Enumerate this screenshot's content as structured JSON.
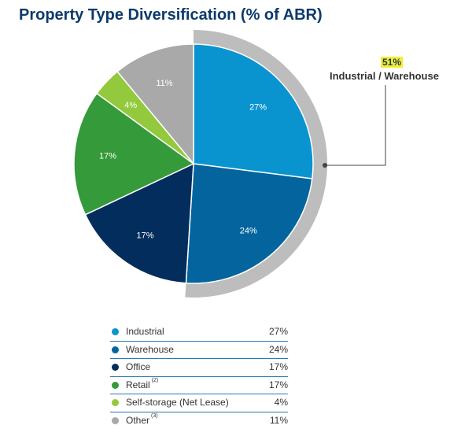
{
  "title": "Property Type Diversification (% of ABR)",
  "callout": {
    "value": "51%",
    "label": "Industrial / Warehouse"
  },
  "chart_data": {
    "type": "pie",
    "title": "Property Type Diversification (% of ABR)",
    "slices": [
      {
        "name": "Industrial",
        "value": 27,
        "label": "27%",
        "color": "#0a94cf"
      },
      {
        "name": "Warehouse",
        "value": 24,
        "label": "24%",
        "color": "#04659e"
      },
      {
        "name": "Office",
        "value": 17,
        "label": "17%",
        "color": "#032d5c"
      },
      {
        "name": "Retail",
        "value": 17,
        "label": "17%",
        "color": "#359a39"
      },
      {
        "name": "Self-storage (Net Lease)",
        "value": 4,
        "label": "4%",
        "color": "#92c93d"
      },
      {
        "name": "Other",
        "value": 11,
        "label": "11%",
        "color": "#a9a9a9"
      }
    ],
    "highlight": {
      "slices": [
        "Industrial",
        "Warehouse"
      ],
      "value": "51%",
      "label": "Industrial / Warehouse",
      "color": "#bdbdbd"
    }
  },
  "legend": [
    {
      "name": "Industrial",
      "note": "",
      "value": "27%",
      "color": "#0a94cf"
    },
    {
      "name": "Warehouse",
      "note": "",
      "value": "24%",
      "color": "#04659e"
    },
    {
      "name": "Office",
      "note": "",
      "value": "17%",
      "color": "#032d5c"
    },
    {
      "name": "Retail",
      "note": "(2)",
      "value": "17%",
      "color": "#359a39"
    },
    {
      "name": "Self-storage (Net Lease)",
      "note": "",
      "value": "4%",
      "color": "#92c93d"
    },
    {
      "name": "Other",
      "note": "(3)",
      "value": "11%",
      "color": "#a9a9a9"
    }
  ]
}
